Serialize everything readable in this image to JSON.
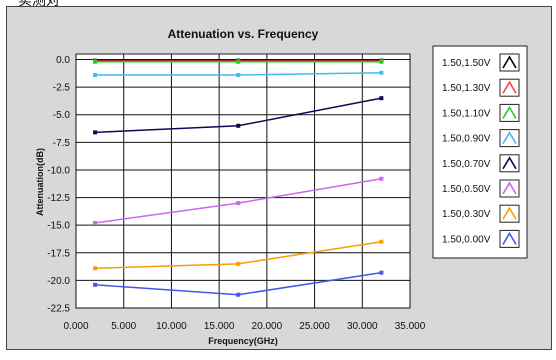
{
  "top_fragment": "实测对",
  "chart_data": {
    "type": "line",
    "title": "Attenuation vs. Frequency",
    "xlabel": "Frequency(GHz)",
    "ylabel": "Attenuation(dB)",
    "xlim": [
      0,
      35
    ],
    "ylim": [
      -22.5,
      0.5
    ],
    "grid": true,
    "legend_placement": "right",
    "x_ticks": [
      "0.000",
      "5.000",
      "10.000",
      "15.000",
      "20.000",
      "25.000",
      "30.000",
      "35.000"
    ],
    "y_ticks": [
      "0.0",
      "-2.5",
      "-5.0",
      "-7.5",
      "-10.0",
      "-12.5",
      "-15.0",
      "-17.5",
      "-20.0",
      "-22.5"
    ],
    "x": [
      2,
      17,
      32
    ],
    "series": [
      {
        "name": "1.50,1.50V",
        "color": "#000000",
        "values": [
          -0.1,
          -0.1,
          -0.1
        ]
      },
      {
        "name": "1.50,1.30V",
        "color": "#ff4444",
        "values": [
          -0.15,
          -0.15,
          -0.15
        ]
      },
      {
        "name": "1.50,1.10V",
        "color": "#22cc22",
        "values": [
          -0.2,
          -0.2,
          -0.2
        ]
      },
      {
        "name": "1.50,0.90V",
        "color": "#44bbee",
        "values": [
          -1.4,
          -1.4,
          -1.2
        ]
      },
      {
        "name": "1.50,0.70V",
        "color": "#0a0a55",
        "values": [
          -6.6,
          -6.0,
          -3.5
        ]
      },
      {
        "name": "1.50,0.50V",
        "color": "#cc66ee",
        "values": [
          -14.8,
          -13.0,
          -10.8
        ]
      },
      {
        "name": "1.50,0.30V",
        "color": "#f5a000",
        "values": [
          -18.9,
          -18.5,
          -16.5
        ]
      },
      {
        "name": "1.50,0.00V",
        "color": "#4455ee",
        "values": [
          -20.4,
          -21.3,
          -19.3
        ]
      }
    ]
  }
}
